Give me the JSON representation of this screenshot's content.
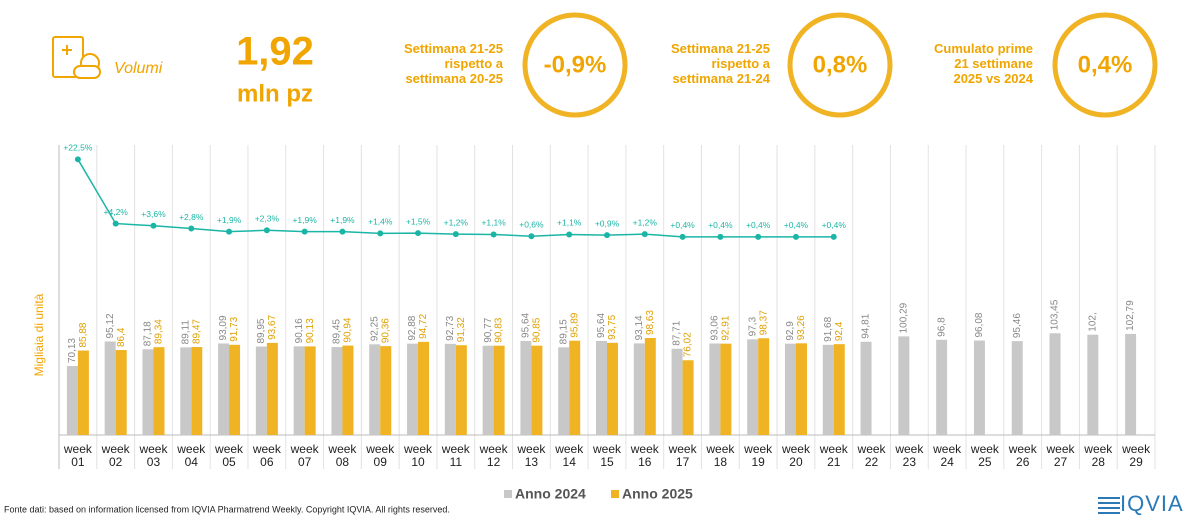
{
  "header": {
    "icon_label": "Volumi",
    "value": "1,92",
    "unit": "mln pz",
    "kpis": [
      {
        "label_lines": [
          "Settimana 21-25",
          "rispetto a",
          "settimana 20-25"
        ],
        "value": "-0,9%"
      },
      {
        "label_lines": [
          "Settimana 21-25",
          "rispetto a",
          "settimana 21-24"
        ],
        "value": "0,8%"
      },
      {
        "label_lines": [
          "Cumulato prime",
          "21 settimane",
          "2025 vs 2024"
        ],
        "value": "0,4%"
      }
    ]
  },
  "chart_data": {
    "type": "bar",
    "y_axis_label": "Migliaia di unità",
    "categories": [
      "week 01",
      "week 02",
      "week 03",
      "week 04",
      "week 05",
      "week 06",
      "week 07",
      "week 08",
      "week 09",
      "week 10",
      "week 11",
      "week 12",
      "week 13",
      "week 14",
      "week 15",
      "week 16",
      "week 17",
      "week 18",
      "week 19",
      "week 20",
      "week 21",
      "week 22",
      "week 23",
      "week 24",
      "week 25",
      "week 26",
      "week 27",
      "week 28",
      "week 29"
    ],
    "ylim": [
      0,
      300
    ],
    "y2lim": [
      -56,
      28
    ],
    "series": [
      {
        "name": "Anno 2024",
        "color": "#c8c8c8",
        "values": [
          70.13,
          95.12,
          87.18,
          89.11,
          93.09,
          89.95,
          90.16,
          89.45,
          92.25,
          92.88,
          92.73,
          90.77,
          95.64,
          89.15,
          95.64,
          93.14,
          87.71,
          93.06,
          97.3,
          92.9,
          91.68,
          94.81,
          100.29,
          96.8,
          96.08,
          95.46,
          103.45,
          102,
          102.79
        ],
        "value_labels": [
          "70,13",
          "95,12",
          "87,18",
          "89,11",
          "93,09",
          "89,95",
          "90,16",
          "89,45",
          "92,25",
          "92,88",
          "92,73",
          "90,77",
          "95,64",
          "89,15",
          "95,64",
          "93,14",
          "87,71",
          "93,06",
          "97,3",
          "92,9",
          "91,68",
          "94,81",
          "100,29",
          "96,8",
          "96,08",
          "95,46",
          "103,45",
          "102,",
          "102,79"
        ]
      },
      {
        "name": "Anno 2025",
        "color": "#f0b323",
        "values": [
          85.88,
          86.4,
          89.34,
          89.47,
          91.73,
          93.67,
          90.13,
          90.94,
          90.36,
          94.72,
          91.32,
          90.83,
          90.85,
          95.89,
          93.75,
          98.63,
          76.02,
          92.91,
          98.37,
          93.26,
          92.4,
          null,
          null,
          null,
          null,
          null,
          null,
          null,
          null
        ],
        "value_labels": [
          "85,88",
          "86,4",
          "89,34",
          "89,47",
          "91,73",
          "93,67",
          "90,13",
          "90,94",
          "90,36",
          "94,72",
          "91,32",
          "90,83",
          "90,85",
          "95,89",
          "93,75",
          "98,63",
          "76,02",
          "92,91",
          "98,37",
          "93,26",
          "92,4",
          null,
          null,
          null,
          null,
          null,
          null,
          null,
          null
        ]
      }
    ],
    "growth": {
      "axis": "y2",
      "color": "#1ab5a5",
      "values": [
        22.5,
        4.2,
        3.6,
        2.8,
        1.9,
        2.3,
        1.9,
        1.9,
        1.4,
        1.5,
        1.2,
        1.1,
        0.6,
        1.1,
        0.9,
        1.2,
        0.4,
        0.4,
        0.4,
        0.4,
        0.4,
        null,
        null,
        null,
        null,
        null,
        null,
        null,
        null
      ],
      "value_labels": [
        "+22,5%",
        "+4,2%",
        "+3,6%",
        "+2,8%",
        "+1,9%",
        "+2,3%",
        "+1,9%",
        "+1,9%",
        "+1,4%",
        "+1,5%",
        "+1,2%",
        "+1,1%",
        "+0,6%",
        "+1,1%",
        "+0,9%",
        "+1,2%",
        "+0,4%",
        "+0,4%",
        "+0,4%",
        "+0,4%",
        "+0,4%",
        null,
        null,
        null,
        null,
        null,
        null,
        null,
        null
      ]
    }
  },
  "footer": {
    "source": "Fonte dati: based on information licensed from IQVIA Pharmatrend Weekly. Copyright IQVIA. All rights reserved.",
    "logo": "IQVIA"
  }
}
